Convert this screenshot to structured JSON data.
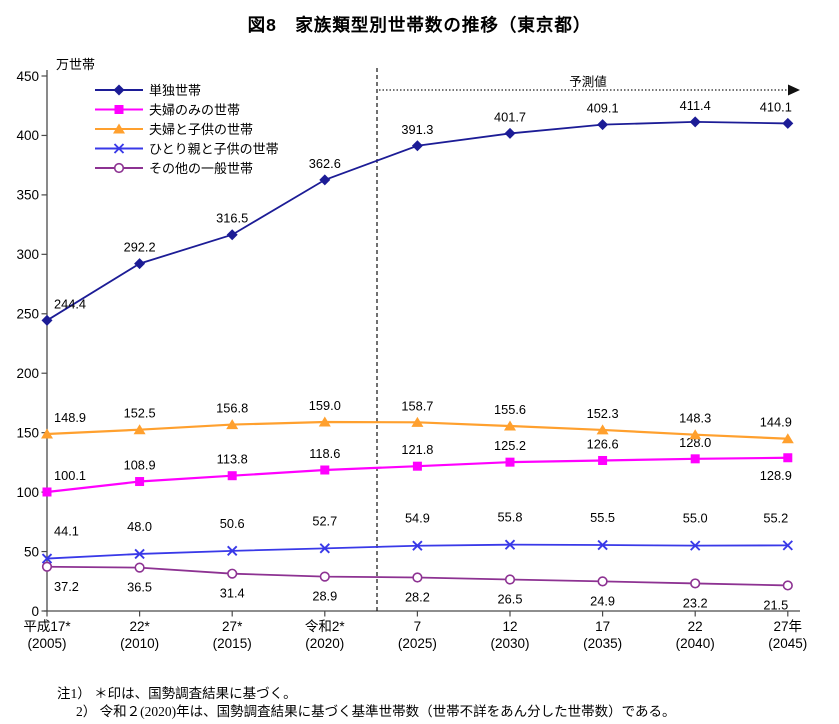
{
  "title": "図8　家族類型別世帯数の推移（東京都）",
  "chart_data": {
    "type": "line",
    "title": "図8　家族類型別世帯数の推移（東京都）",
    "unit_label": "万世帯",
    "forecast_label": "予測値",
    "ylim": [
      0,
      450
    ],
    "ytick_step": 50,
    "grid": false,
    "legend_position": "top-left-inside",
    "forecast_boundary_after_index": 3,
    "x_labels": [
      [
        "平成17*",
        "(2005)"
      ],
      [
        "22*",
        "(2010)"
      ],
      [
        "27*",
        "(2015)"
      ],
      [
        "令和2*",
        "(2020)"
      ],
      [
        "7",
        "(2025)"
      ],
      [
        "12",
        "(2030)"
      ],
      [
        "17",
        "(2035)"
      ],
      [
        "22",
        "(2040)"
      ],
      [
        "27年",
        "(2045)"
      ]
    ],
    "series": [
      {
        "key": "single",
        "name": "単独世帯",
        "color": "#1C1C96",
        "marker": "diamond",
        "label_side": "above",
        "values": [
          244.4,
          292.2,
          316.5,
          362.6,
          391.3,
          401.7,
          409.1,
          411.4,
          410.1
        ]
      },
      {
        "key": "couple-only",
        "name": "夫婦のみの世帯",
        "color": "#FF00FF",
        "marker": "square",
        "label_side": "above",
        "label_overrides": {
          "8": "below"
        },
        "values": [
          100.1,
          108.9,
          113.8,
          118.6,
          121.8,
          125.2,
          126.6,
          128.0,
          128.9
        ]
      },
      {
        "key": "couple-children",
        "name": "夫婦と子供の世帯",
        "color": "#FFA02E",
        "marker": "triangle",
        "label_side": "above",
        "values": [
          148.9,
          152.5,
          156.8,
          159.0,
          158.7,
          155.6,
          152.3,
          148.3,
          144.9
        ]
      },
      {
        "key": "single-parent-children",
        "name": "ひとり親と子供の世帯",
        "color": "#3939E8",
        "marker": "x",
        "label_side": "above_high",
        "values": [
          44.1,
          48.0,
          50.6,
          52.7,
          54.9,
          55.8,
          55.5,
          55.0,
          55.2
        ]
      },
      {
        "key": "other-general",
        "name": "その他の一般世帯",
        "color": "#8D3292",
        "marker": "circle-open",
        "label_side": "below",
        "values": [
          37.2,
          36.5,
          31.4,
          28.9,
          28.2,
          26.5,
          24.9,
          23.2,
          21.5
        ]
      }
    ]
  },
  "notes": [
    "注1） ＊印は、国勢調査結果に基づく。",
    "2） 令和２(2020)年は、国勢調査結果に基づく基準世帯数（世帯不詳をあん分した世帯数）である。"
  ]
}
